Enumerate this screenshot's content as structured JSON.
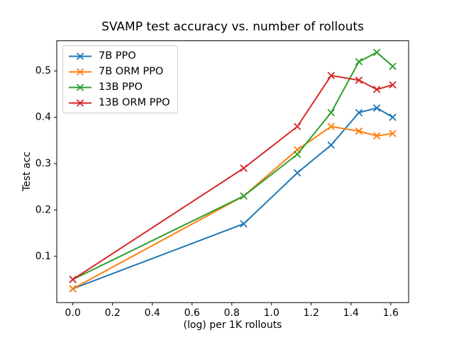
{
  "figure": {
    "background": "#ffffff",
    "axis_color": "#000000",
    "tick_label_color": "#000000"
  },
  "chart_data": {
    "type": "line",
    "title": "SVAMP test accuracy vs. number of rollouts",
    "xlabel": "(log) per 1K rollouts",
    "ylabel": "Test acc",
    "marker": "x",
    "grid": false,
    "legend_position": "upper left",
    "x": [
      0.0,
      0.86,
      1.13,
      1.3,
      1.44,
      1.53,
      1.61
    ],
    "series": [
      {
        "name": "7B PPO",
        "color": "#1f77b4",
        "values": [
          0.03,
          0.17,
          0.28,
          0.34,
          0.41,
          0.42,
          0.4
        ]
      },
      {
        "name": "7B ORM PPO",
        "color": "#ff7f0e",
        "values": [
          0.03,
          0.23,
          0.33,
          0.38,
          0.37,
          0.36,
          0.365
        ]
      },
      {
        "name": "13B PPO",
        "color": "#2ca02c",
        "values": [
          0.05,
          0.23,
          0.32,
          0.41,
          0.52,
          0.54,
          0.51
        ]
      },
      {
        "name": "13B ORM PPO",
        "color": "#d62728",
        "values": [
          0.05,
          0.29,
          0.38,
          0.49,
          0.48,
          0.46,
          0.47
        ]
      }
    ],
    "x_ticks": [
      0.0,
      0.2,
      0.4,
      0.6,
      0.8,
      1.0,
      1.2,
      1.4,
      1.6
    ],
    "x_tick_labels": [
      "0.0",
      "0.2",
      "0.4",
      "0.6",
      "0.8",
      "1.0",
      "1.2",
      "1.4",
      "1.6"
    ],
    "y_ticks": [
      0.1,
      0.2,
      0.3,
      0.4,
      0.5
    ],
    "y_tick_labels": [
      "0.1",
      "0.2",
      "0.3",
      "0.4",
      "0.5"
    ],
    "xlim": [
      -0.081,
      1.69
    ],
    "ylim": [
      0.0,
      0.565
    ]
  }
}
